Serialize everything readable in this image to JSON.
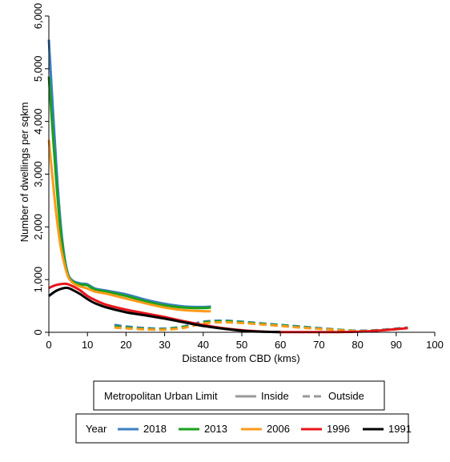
{
  "chart_data": {
    "type": "line",
    "xlabel": "Distance from CBD (kms)",
    "ylabel": "Number of dwellings per sqkm",
    "xlim": [
      0,
      100
    ],
    "ylim": [
      0,
      6000
    ],
    "x_ticks": [
      0,
      10,
      20,
      30,
      40,
      50,
      60,
      70,
      80,
      90,
      100
    ],
    "y_ticks": [
      0,
      1000,
      2000,
      3000,
      4000,
      5000,
      6000
    ],
    "x_tick_labels": [
      "0",
      "10",
      "20",
      "30",
      "40",
      "50",
      "60",
      "70",
      "80",
      "90",
      "100"
    ],
    "y_tick_labels": [
      "0",
      "1,000",
      "2,000",
      "3,000",
      "4,000",
      "5,000",
      "6,000"
    ],
    "grid": false,
    "legend_limit": {
      "title": "Metropolitan Urban Limit",
      "items": [
        {
          "label": "Inside",
          "style": "solid"
        },
        {
          "label": "Outside",
          "style": "dashed"
        }
      ]
    },
    "legend_year": {
      "title": "Year",
      "items": [
        {
          "label": "2018",
          "color": "#3a7fc1"
        },
        {
          "label": "2013",
          "color": "#1aa01a"
        },
        {
          "label": "2006",
          "color": "#ff9a1a"
        },
        {
          "label": "1996",
          "color": "#e8141a"
        },
        {
          "label": "1991",
          "color": "#000000"
        }
      ]
    },
    "series": [
      {
        "name": "2018",
        "limit": "Inside",
        "color": "#3a7fc1",
        "x": [
          0,
          1,
          2,
          3,
          4,
          5,
          6,
          7,
          8,
          9,
          10,
          12,
          15,
          20,
          25,
          30,
          35,
          40,
          42
        ],
        "y": [
          5550,
          4300,
          3100,
          2100,
          1450,
          1100,
          990,
          950,
          930,
          920,
          910,
          830,
          790,
          720,
          620,
          540,
          490,
          480,
          490
        ]
      },
      {
        "name": "2018",
        "limit": "Outside",
        "color": "#3a7fc1",
        "x": [
          17,
          20,
          25,
          30,
          35,
          40,
          45,
          50,
          55,
          60,
          65,
          70,
          75,
          80,
          85,
          90,
          93
        ],
        "y": [
          140,
          110,
          80,
          70,
          110,
          200,
          220,
          200,
          170,
          140,
          110,
          80,
          50,
          30,
          40,
          70,
          90
        ]
      },
      {
        "name": "2013",
        "limit": "Inside",
        "color": "#1aa01a",
        "x": [
          0,
          1,
          2,
          3,
          4,
          5,
          6,
          7,
          8,
          9,
          10,
          12,
          15,
          20,
          25,
          30,
          35,
          40,
          42
        ],
        "y": [
          4850,
          3800,
          2800,
          1950,
          1400,
          1080,
          970,
          930,
          910,
          900,
          890,
          810,
          770,
          690,
          590,
          510,
          470,
          460,
          470
        ]
      },
      {
        "name": "2013",
        "limit": "Outside",
        "color": "#1aa01a",
        "x": [
          17,
          20,
          25,
          30,
          35,
          40,
          45,
          50,
          55,
          60,
          65,
          70,
          75,
          80,
          85,
          90,
          93
        ],
        "y": [
          110,
          90,
          65,
          60,
          100,
          185,
          210,
          190,
          160,
          130,
          100,
          70,
          45,
          25,
          35,
          65,
          85
        ]
      },
      {
        "name": "2006",
        "limit": "Inside",
        "color": "#ff9a1a",
        "x": [
          0,
          1,
          2,
          3,
          4,
          5,
          6,
          7,
          8,
          9,
          10,
          12,
          15,
          20,
          25,
          30,
          35,
          40,
          42
        ],
        "y": [
          3650,
          2900,
          2200,
          1650,
          1300,
          1050,
          950,
          900,
          870,
          850,
          830,
          770,
          730,
          640,
          550,
          470,
          420,
          400,
          400
        ]
      },
      {
        "name": "2006",
        "limit": "Outside",
        "color": "#ff9a1a",
        "x": [
          17,
          20,
          25,
          30,
          35,
          40,
          45,
          50,
          55,
          60,
          65,
          70,
          75,
          80,
          85,
          90,
          93
        ],
        "y": [
          90,
          75,
          55,
          50,
          85,
          165,
          190,
          175,
          150,
          120,
          90,
          65,
          40,
          20,
          30,
          60,
          80
        ]
      },
      {
        "name": "1996",
        "limit": "Inside",
        "color": "#e8141a",
        "x": [
          0,
          2,
          4,
          5,
          6,
          8,
          10,
          12,
          15,
          20,
          25,
          30,
          35,
          40,
          45,
          50,
          55,
          60,
          65,
          70,
          75,
          80,
          85,
          90,
          93
        ],
        "y": [
          840,
          900,
          920,
          910,
          880,
          800,
          690,
          610,
          520,
          430,
          360,
          290,
          210,
          140,
          80,
          40,
          15,
          5,
          5,
          5,
          5,
          10,
          30,
          60,
          80
        ]
      },
      {
        "name": "1991",
        "limit": "Inside",
        "color": "#000000",
        "x": [
          0,
          2,
          4,
          5,
          6,
          8,
          10,
          12,
          15,
          20,
          25,
          30,
          35,
          40,
          45,
          50,
          55,
          60
        ],
        "y": [
          690,
          790,
          840,
          840,
          810,
          730,
          630,
          550,
          470,
          380,
          320,
          260,
          190,
          120,
          70,
          30,
          10,
          5
        ]
      }
    ]
  }
}
